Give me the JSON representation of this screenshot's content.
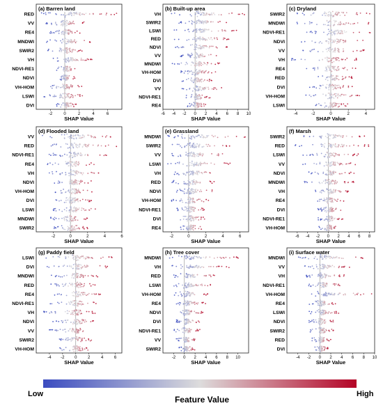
{
  "figure": {
    "xlabel": "SHAP Value",
    "colorbar": {
      "low_label": "Low",
      "high_label": "High",
      "title": "Feature Value",
      "color_low": "#3b4cc0",
      "color_mid": "#dddcdc",
      "color_high": "#b40426"
    }
  },
  "chart_data": [
    {
      "type": "scatter",
      "title": "(a) Barren land",
      "xlabel": "SHAP Value",
      "features": [
        "RED",
        "VV",
        "RE4",
        "MNDWI",
        "SWIR2",
        "VH",
        "NDVI-RE1",
        "NDVI",
        "VH-HOM",
        "LSWI",
        "DVI"
      ],
      "xlim": [
        -4,
        8
      ],
      "xticks": [
        -2,
        0,
        2,
        4,
        6
      ],
      "ranges": [
        [
          -3.6,
          7.4
        ],
        [
          -2.8,
          3.0
        ],
        [
          -2.2,
          2.4
        ],
        [
          -2.6,
          3.6
        ],
        [
          -2.4,
          2.6
        ],
        [
          -1.8,
          3.8
        ],
        [
          -1.2,
          1.6
        ],
        [
          -1.0,
          1.4
        ],
        [
          -2.6,
          2.4
        ],
        [
          -3.0,
          2.8
        ],
        [
          -1.2,
          1.6
        ]
      ]
    },
    {
      "type": "scatter",
      "title": "(b) Built-up area",
      "xlabel": "SHAP Value",
      "features": [
        "VH",
        "SWIR2",
        "LSWI",
        "RED",
        "NDVI",
        "VV",
        "MNDWI",
        "VH-HOM",
        "DVI",
        "VV",
        "NDVI-RE1",
        "RE4"
      ],
      "xlim": [
        -6,
        10
      ],
      "xticks": [
        -6,
        -4,
        -2,
        0,
        2,
        4,
        6,
        8,
        10
      ],
      "ranges": [
        [
          -4.5,
          9.5
        ],
        [
          -3.0,
          6.5
        ],
        [
          -4.0,
          8.0
        ],
        [
          -4.0,
          7.0
        ],
        [
          -4.0,
          6.0
        ],
        [
          -3.0,
          5.0
        ],
        [
          -4.5,
          5.0
        ],
        [
          -3.0,
          4.0
        ],
        [
          -2.5,
          3.5
        ],
        [
          -2.5,
          5.0
        ],
        [
          -2.0,
          3.0
        ],
        [
          -1.5,
          2.0
        ]
      ]
    },
    {
      "type": "scatter",
      "title": "(c) Dryland",
      "xlabel": "SHAP Value",
      "features": [
        "SWIR2",
        "MNDWI",
        "NDVI-RE1",
        "NDVI",
        "VV",
        "VH",
        "RE4",
        "RED",
        "DVI",
        "VH-HOM",
        "LSWI"
      ],
      "xlim": [
        -5,
        5
      ],
      "xticks": [
        -4,
        -2,
        0,
        2,
        4
      ],
      "ranges": [
        [
          -4.5,
          4.5
        ],
        [
          -4.0,
          4.5
        ],
        [
          -3.0,
          4.6
        ],
        [
          -4.0,
          4.0
        ],
        [
          -3.5,
          4.0
        ],
        [
          -4.5,
          3.0
        ],
        [
          -3.0,
          3.0
        ],
        [
          -2.0,
          2.5
        ],
        [
          -2.5,
          2.5
        ],
        [
          -3.0,
          3.5
        ],
        [
          -2.0,
          2.0
        ]
      ]
    },
    {
      "type": "scatter",
      "title": "(d) Flooded land",
      "xlabel": "SHAP Value",
      "features": [
        "VV",
        "RED",
        "NDVI-RE1",
        "RE4",
        "VH",
        "NDVI",
        "VH-HOM",
        "DVI",
        "LSWI",
        "MNDWI",
        "SWIR2"
      ],
      "xlim": [
        -4,
        6
      ],
      "xticks": [
        -2,
        0,
        2,
        4,
        6
      ],
      "ranges": [
        [
          -3.5,
          5.5
        ],
        [
          -3.0,
          5.5
        ],
        [
          -2.5,
          4.5
        ],
        [
          -3.0,
          3.0
        ],
        [
          -2.5,
          4.0
        ],
        [
          -2.0,
          2.5
        ],
        [
          -2.0,
          2.5
        ],
        [
          -2.0,
          2.5
        ],
        [
          -2.0,
          3.0
        ],
        [
          -2.5,
          2.0
        ],
        [
          -2.0,
          2.0
        ]
      ]
    },
    {
      "type": "scatter",
      "title": "(e) Grassland",
      "xlabel": "SHAP Value",
      "features": [
        "MNDWI",
        "SWIR2",
        "VV",
        "LSWI",
        "VH",
        "RED",
        "NDVI",
        "VH-HOM",
        "NDVI-RE1",
        "DVI",
        "RE4"
      ],
      "xlim": [
        -3,
        7
      ],
      "xticks": [
        -2,
        0,
        2,
        4,
        6
      ],
      "ranges": [
        [
          -2.5,
          6.8
        ],
        [
          -2.0,
          5.0
        ],
        [
          -2.5,
          4.5
        ],
        [
          -2.5,
          5.0
        ],
        [
          -2.0,
          4.0
        ],
        [
          -2.0,
          3.0
        ],
        [
          -1.5,
          3.0
        ],
        [
          -2.0,
          2.5
        ],
        [
          -1.5,
          2.0
        ],
        [
          -1.5,
          2.0
        ],
        [
          -1.0,
          1.5
        ]
      ]
    },
    {
      "type": "scatter",
      "title": "(f) Marsh",
      "xlabel": "SHAP Value",
      "features": [
        "SWIR2",
        "RED",
        "LSWI",
        "VV",
        "NDVI",
        "MNDWI",
        "VH",
        "RE4",
        "DVI",
        "NDVI-RE1",
        "VH-HOM"
      ],
      "xlim": [
        -8,
        9
      ],
      "xticks": [
        -6,
        -4,
        -2,
        0,
        2,
        4,
        6,
        8
      ],
      "ranges": [
        [
          -5.0,
          7.5
        ],
        [
          -6.5,
          8.0
        ],
        [
          -5.0,
          6.0
        ],
        [
          -5.0,
          6.0
        ],
        [
          -4.0,
          5.0
        ],
        [
          -5.0,
          5.0
        ],
        [
          -3.0,
          4.0
        ],
        [
          -3.0,
          3.0
        ],
        [
          -2.0,
          2.5
        ],
        [
          -2.0,
          3.0
        ],
        [
          -2.0,
          2.0
        ]
      ]
    },
    {
      "type": "scatter",
      "title": "(g) Paddy field",
      "xlabel": "SHAP Value",
      "features": [
        "LSWI",
        "DVI",
        "MNDWI",
        "RED",
        "RE4",
        "NDVI-RE1",
        "VH",
        "NDVI",
        "VV",
        "SWIR2",
        "VH-HOM"
      ],
      "xlim": [
        -6,
        7
      ],
      "xticks": [
        -4,
        -2,
        0,
        2,
        4,
        6
      ],
      "ranges": [
        [
          -5.0,
          5.5
        ],
        [
          -4.5,
          5.0
        ],
        [
          -4.0,
          3.5
        ],
        [
          -4.0,
          3.0
        ],
        [
          -3.5,
          4.0
        ],
        [
          -4.0,
          3.5
        ],
        [
          -5.0,
          3.0
        ],
        [
          -3.5,
          3.0
        ],
        [
          -4.0,
          2.5
        ],
        [
          -3.0,
          2.5
        ],
        [
          -2.5,
          2.0
        ]
      ]
    },
    {
      "type": "scatter",
      "title": "(h) Tree cover",
      "xlabel": "SHAP Value",
      "features": [
        "MNDWI",
        "VH",
        "RED",
        "LSWI",
        "VH-HOM",
        "RE4",
        "NDVI",
        "DVI",
        "NDVI-RE1",
        "VV",
        "SWIR2"
      ],
      "xlim": [
        -4,
        12
      ],
      "xticks": [
        -2,
        0,
        2,
        4,
        6,
        8,
        10
      ],
      "ranges": [
        [
          -3.0,
          10.5
        ],
        [
          -2.5,
          8.5
        ],
        [
          -2.0,
          6.0
        ],
        [
          -2.0,
          5.0
        ],
        [
          -2.0,
          4.5
        ],
        [
          -2.0,
          4.0
        ],
        [
          -2.0,
          3.5
        ],
        [
          -1.5,
          3.0
        ],
        [
          -2.0,
          3.0
        ],
        [
          -1.5,
          2.5
        ],
        [
          -1.0,
          2.0
        ]
      ]
    },
    {
      "type": "scatter",
      "title": "(i) Surface water",
      "xlabel": "SHAP Value",
      "features": [
        "MNDWI",
        "VV",
        "VH",
        "NDVI-RE1",
        "VH-HOM",
        "RE4",
        "LSWI",
        "NDVI",
        "SWIR2",
        "RED",
        "DVI"
      ],
      "xlim": [
        -6,
        10
      ],
      "xticks": [
        -4,
        -2,
        0,
        2,
        4,
        6,
        8,
        10
      ],
      "ranges": [
        [
          -4.5,
          9.0
        ],
        [
          -3.0,
          5.5
        ],
        [
          -2.5,
          4.5
        ],
        [
          -2.5,
          4.0
        ],
        [
          -3.0,
          9.5
        ],
        [
          -2.0,
          3.0
        ],
        [
          -2.0,
          3.5
        ],
        [
          -2.0,
          2.5
        ],
        [
          -2.0,
          2.5
        ],
        [
          -1.5,
          2.0
        ],
        [
          -1.0,
          1.5
        ]
      ]
    }
  ]
}
